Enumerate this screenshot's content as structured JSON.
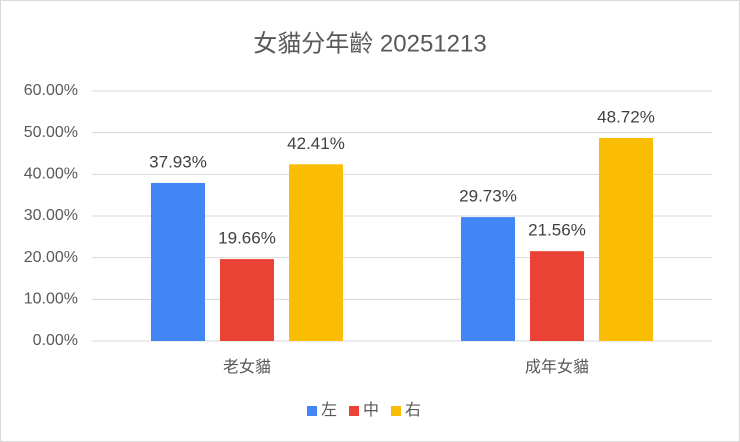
{
  "chart_data": {
    "type": "bar",
    "title": "女貓分年齡 20251213",
    "categories": [
      "老女貓",
      "成年女貓"
    ],
    "series": [
      {
        "name": "左",
        "color": "#4285f4",
        "values": [
          37.93,
          29.73
        ],
        "value_labels": [
          "37.93%",
          "29.73%"
        ]
      },
      {
        "name": "中",
        "color": "#ea4335",
        "values": [
          19.66,
          21.56
        ],
        "value_labels": [
          "19.66%",
          "21.56%"
        ]
      },
      {
        "name": "右",
        "color": "#fbbc04",
        "values": [
          42.41,
          48.72
        ],
        "value_labels": [
          "42.41%",
          "48.72%"
        ]
      }
    ],
    "ylim": [
      0,
      60
    ],
    "yticks": [
      {
        "value": 0,
        "label": "0.00%"
      },
      {
        "value": 10,
        "label": "10.00%"
      },
      {
        "value": 20,
        "label": "20.00%"
      },
      {
        "value": 30,
        "label": "30.00%"
      },
      {
        "value": 40,
        "label": "40.00%"
      },
      {
        "value": 50,
        "label": "50.00%"
      },
      {
        "value": 60,
        "label": "60.00%"
      }
    ],
    "grid": true,
    "legend": "bottom"
  }
}
